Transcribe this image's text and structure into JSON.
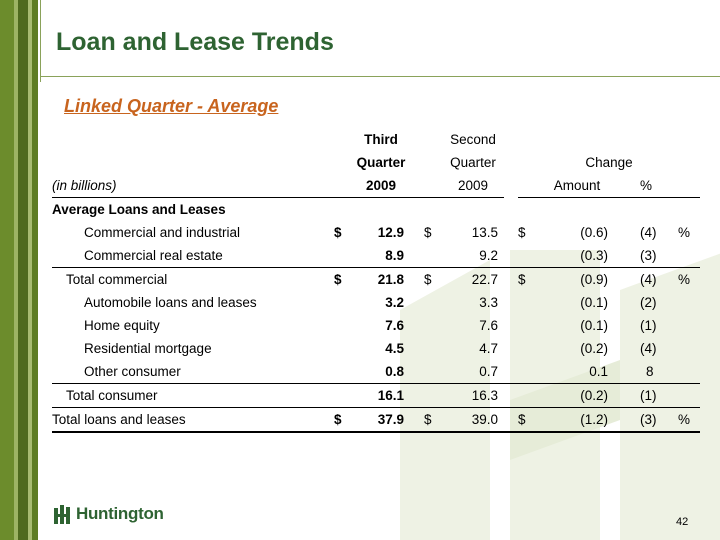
{
  "slide": {
    "title": "Loan and Lease Trends",
    "subtitle": "Linked Quarter - Average",
    "page_number": "42",
    "logo_text": "Huntington"
  },
  "colors": {
    "title": "#2e6332",
    "subtitle": "#c8641e",
    "stripe_dark": "#4f6b1e",
    "stripe_mid": "#6c8c2c",
    "stripe_light": "#a8bc72"
  },
  "table": {
    "header": {
      "third_line1": "Third",
      "third_line2": "Quarter",
      "third_year": "2009",
      "second_line1": "Second",
      "second_line2": "Quarter",
      "second_year": "2009",
      "change": "Change",
      "amount": "Amount",
      "pct": "%",
      "units": "(in billions)"
    },
    "section_title": "Average Loans and Leases",
    "rows": [
      {
        "label": "Commercial and industrial",
        "d1": "$",
        "v1": "12.9",
        "d2": "$",
        "v2": "13.5",
        "d3": "$",
        "amt": "(0.6)",
        "pct": "(4)",
        "pct_sign": "%"
      },
      {
        "label": "Commercial real estate",
        "d1": "",
        "v1": "8.9",
        "d2": "",
        "v2": "9.2",
        "d3": "",
        "amt": "(0.3)",
        "pct": "(3)",
        "pct_sign": ""
      },
      {
        "label": "Total commercial",
        "d1": "$",
        "v1": "21.8",
        "d2": "$",
        "v2": "22.7",
        "d3": "$",
        "amt": "(0.9)",
        "pct": "(4)",
        "pct_sign": "%"
      },
      {
        "label": "Automobile loans and leases",
        "d1": "",
        "v1": "3.2",
        "d2": "",
        "v2": "3.3",
        "d3": "",
        "amt": "(0.1)",
        "pct": "(2)",
        "pct_sign": ""
      },
      {
        "label": "Home equity",
        "d1": "",
        "v1": "7.6",
        "d2": "",
        "v2": "7.6",
        "d3": "",
        "amt": "(0.1)",
        "pct": "(1)",
        "pct_sign": ""
      },
      {
        "label": "Residential mortgage",
        "d1": "",
        "v1": "4.5",
        "d2": "",
        "v2": "4.7",
        "d3": "",
        "amt": "(0.2)",
        "pct": "(4)",
        "pct_sign": ""
      },
      {
        "label": "Other consumer",
        "d1": "",
        "v1": "0.8",
        "d2": "",
        "v2": "0.7",
        "d3": "",
        "amt": "0.1",
        "pct": "8",
        "pct_sign": ""
      },
      {
        "label": "Total consumer",
        "d1": "",
        "v1": "16.1",
        "d2": "",
        "v2": "16.3",
        "d3": "",
        "amt": "(0.2)",
        "pct": "(1)",
        "pct_sign": ""
      },
      {
        "label": "Total loans and leases",
        "d1": "$",
        "v1": "37.9",
        "d2": "$",
        "v2": "39.0",
        "d3": "$",
        "amt": "(1.2)",
        "pct": "(3)",
        "pct_sign": "%"
      }
    ]
  }
}
